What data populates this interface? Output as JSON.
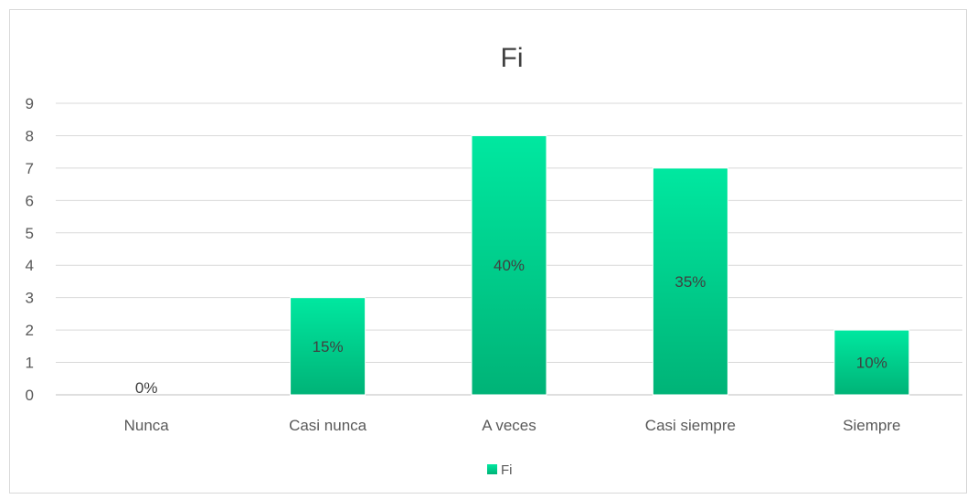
{
  "chart_data": {
    "type": "bar",
    "title": "Fi",
    "xlabel": "",
    "ylabel": "",
    "categories": [
      "Nunca",
      "Casi nunca",
      "A veces",
      "Casi siempre",
      "Siempre"
    ],
    "series": [
      {
        "name": "Fi",
        "values": [
          0,
          3,
          8,
          7,
          2
        ],
        "data_labels": [
          "0%",
          "15%",
          "40%",
          "35%",
          "10%"
        ]
      }
    ],
    "ylim": [
      0,
      9
    ],
    "yticks": [
      0,
      1,
      2,
      3,
      4,
      5,
      6,
      7,
      8,
      9
    ],
    "grid": true,
    "legend": "bottom",
    "colors": {
      "bar_top": "#00e8a0",
      "bar_bottom": "#00b377",
      "gridline": "#d9d9d9",
      "axis": "#bfbfbf"
    }
  }
}
